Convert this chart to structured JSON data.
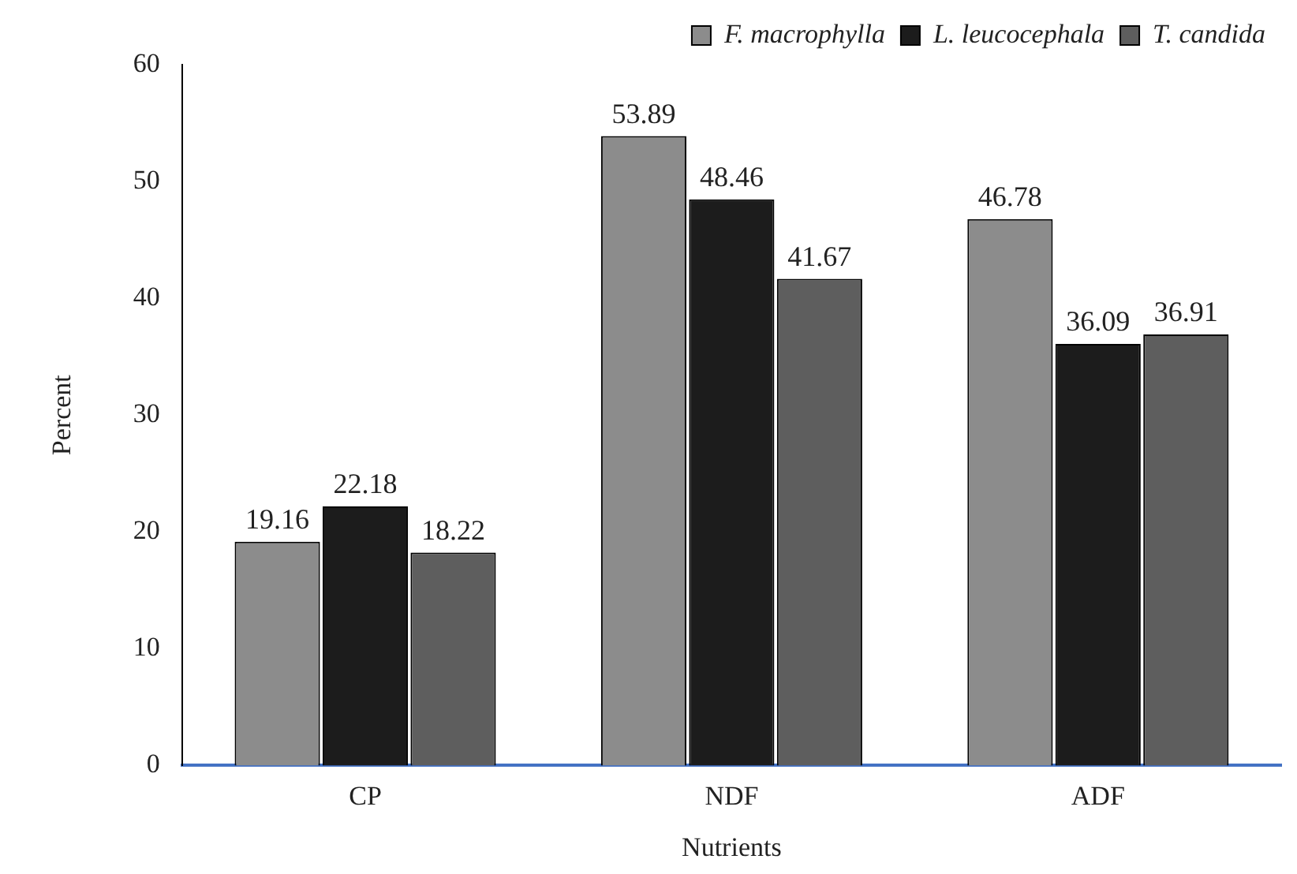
{
  "chart_data": {
    "type": "bar",
    "xlabel": "Nutrients",
    "ylabel": "Percent",
    "categories": [
      "CP",
      "NDF",
      "ADF"
    ],
    "series": [
      {
        "name": "F. macrophylla",
        "color": "#8c8c8c",
        "values": [
          19.16,
          53.89,
          46.78
        ]
      },
      {
        "name": "L. leucocephala",
        "color": "#1c1c1c",
        "values": [
          22.18,
          48.46,
          36.09
        ]
      },
      {
        "name": "T. candida",
        "color": "#5e5e5e",
        "values": [
          18.22,
          41.67,
          36.91
        ]
      }
    ],
    "ylim": [
      0,
      60
    ],
    "yticks": [
      0,
      10,
      20,
      30,
      40,
      50,
      60
    ],
    "grid": false,
    "legend": "top right",
    "data_labels": true
  }
}
